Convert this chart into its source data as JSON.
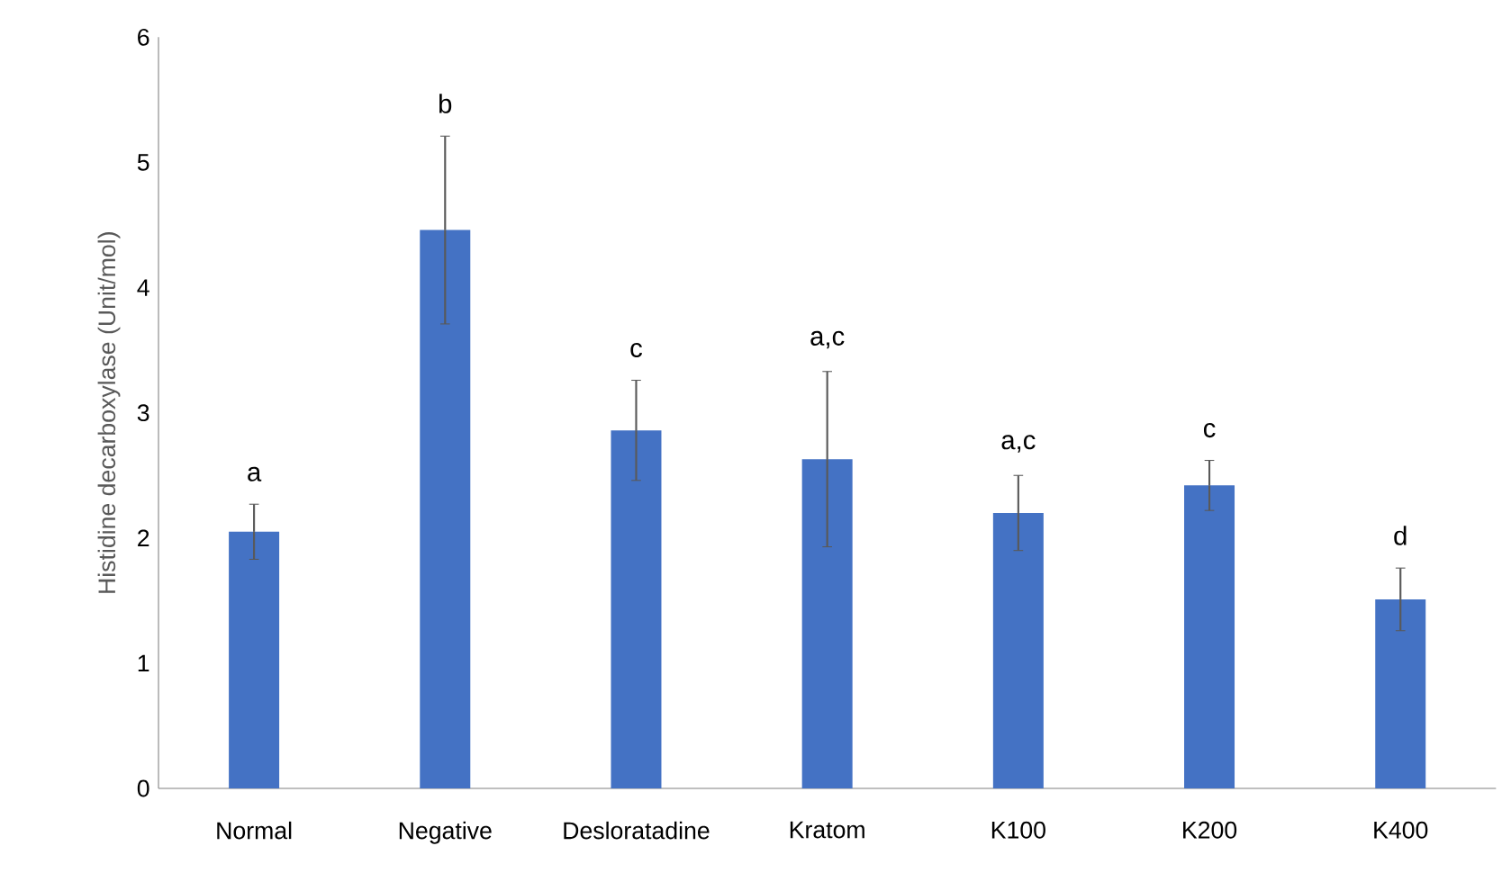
{
  "chart_data": {
    "type": "bar",
    "ylabel": "Histidine decarboxylase (Unit/mol)",
    "categories": [
      "Normal",
      "Negative",
      "Desloratadine",
      "Kratom",
      "K100",
      "K200",
      "K400"
    ],
    "values": [
      2.05,
      4.46,
      2.86,
      2.63,
      2.2,
      2.42,
      1.51
    ],
    "errors": [
      0.22,
      0.75,
      0.4,
      0.7,
      0.3,
      0.2,
      0.25
    ],
    "color": "#4472c4",
    "ylim": [
      0,
      6
    ],
    "yticks": [
      0,
      1,
      2,
      3,
      4,
      5,
      6
    ],
    "grid": false,
    "annotations": [
      {
        "text": "a",
        "x": "Normal",
        "y": 2.27
      },
      {
        "text": "b",
        "x": "Negative",
        "y": 5.21
      },
      {
        "text": "c",
        "x": "Desloratadine",
        "y": 3.26
      },
      {
        "text": "a,c",
        "x": "Kratom",
        "y": 3.33
      },
      {
        "text": "a,c",
        "x": "K100",
        "y": 2.5
      },
      {
        "text": "c",
        "x": "K200",
        "y": 2.62
      },
      {
        "text": "d",
        "x": "K400",
        "y": 1.76
      }
    ]
  }
}
